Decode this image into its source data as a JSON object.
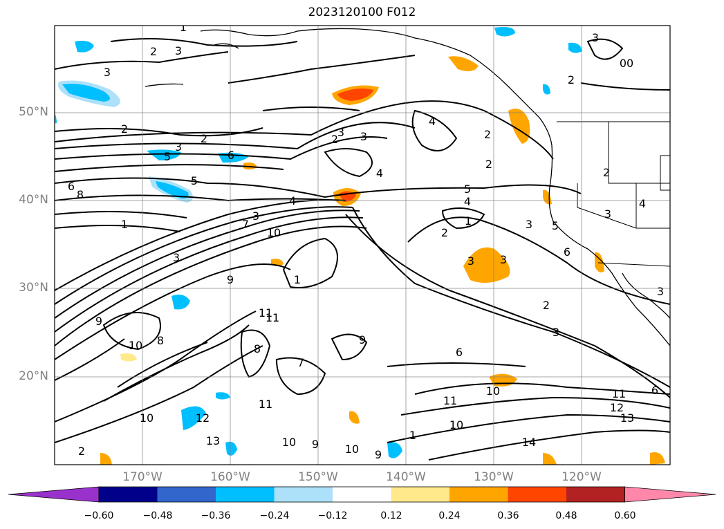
{
  "title": "2023120100 F012",
  "map": {
    "lat_labels": [
      "50°N",
      "40°N",
      "30°N",
      "20°N"
    ],
    "lon_labels": [
      "170°W",
      "160°W",
      "150°W",
      "140°W",
      "130°W",
      "120°W"
    ],
    "contour_labels": [
      "2",
      "3",
      "3",
      "2",
      "3",
      "2",
      "1",
      "2",
      "4",
      "2",
      "3",
      "3",
      "4",
      "5",
      "4",
      "6",
      "5",
      "8",
      "6",
      "5",
      "4",
      "3",
      "1",
      "7",
      "10",
      "10",
      "9",
      "3",
      "11",
      "9",
      "8",
      "10",
      "9",
      "8",
      "7",
      "6",
      "11",
      "12",
      "13",
      "10",
      "10",
      "11",
      "14",
      "11",
      "12",
      "13",
      "9",
      "10",
      "9",
      "2",
      "1",
      "3",
      "3",
      "2",
      "3",
      "1",
      "2",
      "3",
      "5",
      "6",
      "2",
      "3",
      "4",
      "3",
      "6",
      "2",
      "3",
      "00",
      "1",
      "2",
      "11",
      "10"
    ]
  },
  "colorbar": {
    "ticks": [
      "−0.60",
      "−0.48",
      "−0.36",
      "−0.24",
      "−0.12",
      "0.12",
      "0.24",
      "0.36",
      "0.48",
      "0.60"
    ],
    "colors": [
      "#9932CC",
      "#00008B",
      "#3366CC",
      "#00BFFF",
      "#ADE1FA",
      "#FFFFFF",
      "#FFE98A",
      "#FFA500",
      "#FF4500",
      "#B22222",
      "#FF88AA"
    ]
  }
}
